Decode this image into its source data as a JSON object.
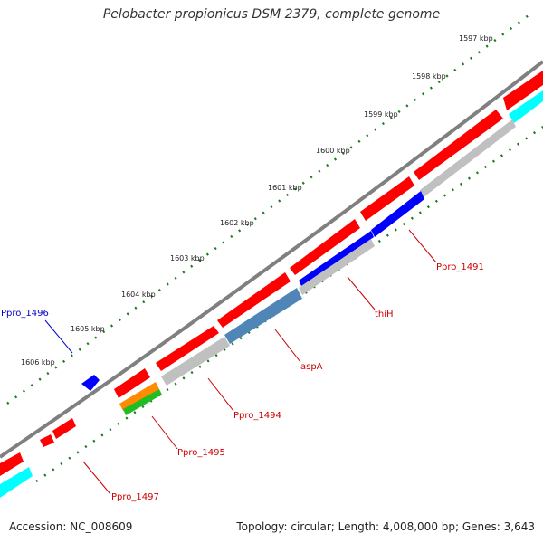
{
  "title": "Pelobacter propionicus DSM 2379, complete genome",
  "footer": {
    "accession": "Accession: NC_008609",
    "summary": "Topology: circular; Length: 4,008,000 bp; Genes: 3,643"
  },
  "ruler": {
    "unit": "kbp",
    "ticks": [
      "1597 kbp",
      "1598 kbp",
      "1599 kbp",
      "1600 kbp",
      "1601 kbp",
      "1602 kbp",
      "1603 kbp",
      "1604 kbp",
      "1605 kbp",
      "1606 kbp"
    ]
  },
  "colors": {
    "backbone": "#808080",
    "cds": "#ff0000",
    "gene_gray": "#c0c0c0",
    "gene_blue": "#0000ff",
    "gene_steel": "#4f86b7",
    "gene_cyan": "#00ffff",
    "gene_orange": "#ff8c00",
    "gene_green": "#22bb22",
    "tick_green": "#1a7a1a",
    "label_red": "#cc0000",
    "label_blue": "#0000cc"
  },
  "gene_labels": [
    {
      "id": "Ppro_1491",
      "text": "Ppro_1491",
      "color": "red"
    },
    {
      "id": "thiH",
      "text": "thiH",
      "color": "red"
    },
    {
      "id": "aspA",
      "text": "aspA",
      "color": "red"
    },
    {
      "id": "Ppro_1494",
      "text": "Ppro_1494",
      "color": "red"
    },
    {
      "id": "Ppro_1495",
      "text": "Ppro_1495",
      "color": "red"
    },
    {
      "id": "Ppro_1497",
      "text": "Ppro_1497",
      "color": "red"
    },
    {
      "id": "Ppro_1496",
      "text": "Ppro_1496",
      "color": "blue"
    }
  ]
}
